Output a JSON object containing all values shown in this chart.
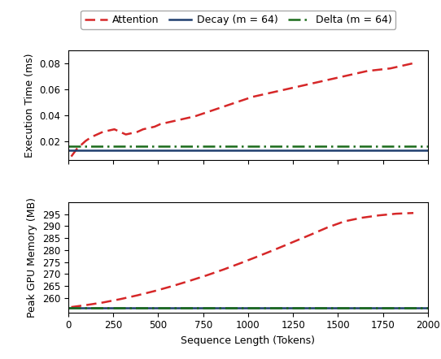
{
  "x_values": [
    16,
    48,
    96,
    128,
    160,
    192,
    224,
    256,
    288,
    320,
    352,
    384,
    416,
    448,
    480,
    512,
    576,
    640,
    704,
    768,
    832,
    896,
    960,
    1024,
    1088,
    1152,
    1216,
    1280,
    1344,
    1408,
    1472,
    1536,
    1600,
    1664,
    1728,
    1792,
    1856,
    1920
  ],
  "attention_time": [
    0.008,
    0.014,
    0.02,
    0.023,
    0.025,
    0.027,
    0.028,
    0.029,
    0.027,
    0.025,
    0.026,
    0.027,
    0.029,
    0.03,
    0.031,
    0.033,
    0.035,
    0.037,
    0.039,
    0.042,
    0.045,
    0.048,
    0.051,
    0.054,
    0.056,
    0.058,
    0.06,
    0.062,
    0.064,
    0.066,
    0.068,
    0.07,
    0.072,
    0.074,
    0.075,
    0.076,
    0.078,
    0.08
  ],
  "decay_time_val": 0.013,
  "delta_time_val": 0.016,
  "attention_mem_x": [
    16,
    96,
    192,
    288,
    384,
    480,
    576,
    672,
    768,
    864,
    960,
    1056,
    1152,
    1248,
    1344,
    1440,
    1536,
    1632,
    1728,
    1824,
    1920
  ],
  "attention_mem_y": [
    256.2,
    257.0,
    258.1,
    259.5,
    261.1,
    262.9,
    264.9,
    267.1,
    269.4,
    271.9,
    274.6,
    277.4,
    280.3,
    283.3,
    286.3,
    289.4,
    292.0,
    293.5,
    294.5,
    295.2,
    295.5
  ],
  "decay_mem_val": 256.0,
  "delta_mem_val": 256.0,
  "attention_color": "#d62728",
  "decay_color": "#1f3e6e",
  "delta_color": "#1a6b1a",
  "xlabel": "Sequence Length (Tokens)",
  "ylabel_top": "Execution Time (ms)",
  "ylabel_bottom": "Peak GPU Memory (MB)",
  "legend_labels": [
    "Attention",
    "Decay (m = 64)",
    "Delta (m = 64)"
  ],
  "time_ylim": [
    0.005,
    0.09
  ],
  "mem_ylim": [
    254,
    300
  ],
  "xlim": [
    0,
    2000
  ],
  "xticks": [
    0,
    250,
    500,
    750,
    1000,
    1250,
    1500,
    1750,
    2000
  ],
  "time_yticks": [
    0.02,
    0.04,
    0.06,
    0.08
  ],
  "mem_yticks": [
    260,
    265,
    270,
    275,
    280,
    285,
    290,
    295
  ]
}
